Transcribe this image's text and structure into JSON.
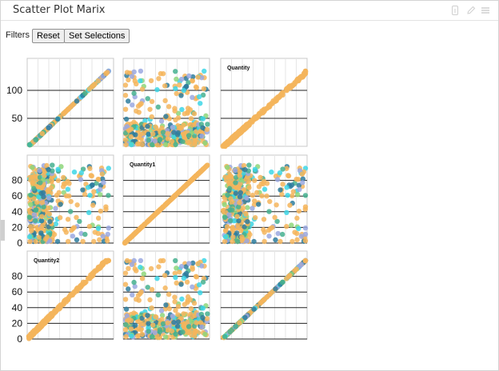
{
  "header": {
    "title": "Scatter Plot Marix",
    "icons": [
      "info-icon",
      "edit-icon",
      "menu-icon"
    ]
  },
  "filters": {
    "label": "Filters :",
    "reset_label": "Reset",
    "set_selections_label": "Set Selections"
  },
  "palette": [
    "#f4b55c",
    "#f4b55c",
    "#f4b55c",
    "#3dd6e6",
    "#8ed67a",
    "#9aa8e0",
    "#2e7d9e",
    "#45b08f",
    "#f4b55c"
  ],
  "chart_data": {
    "type": "scatter",
    "matrix_variables": [
      "Quantity",
      "Quantity1",
      "Quantity2"
    ],
    "axes": {
      "Quantity": {
        "range": [
          0,
          140
        ],
        "ticks": [
          50,
          100
        ]
      },
      "Quantity1": {
        "range": [
          0,
          100
        ],
        "ticks": [
          0,
          20,
          40,
          60,
          80
        ]
      },
      "Quantity2": {
        "range": [
          0,
          100
        ],
        "ticks": [
          0,
          20,
          40,
          60,
          80
        ]
      }
    },
    "grid": true,
    "point_count": 420
  }
}
